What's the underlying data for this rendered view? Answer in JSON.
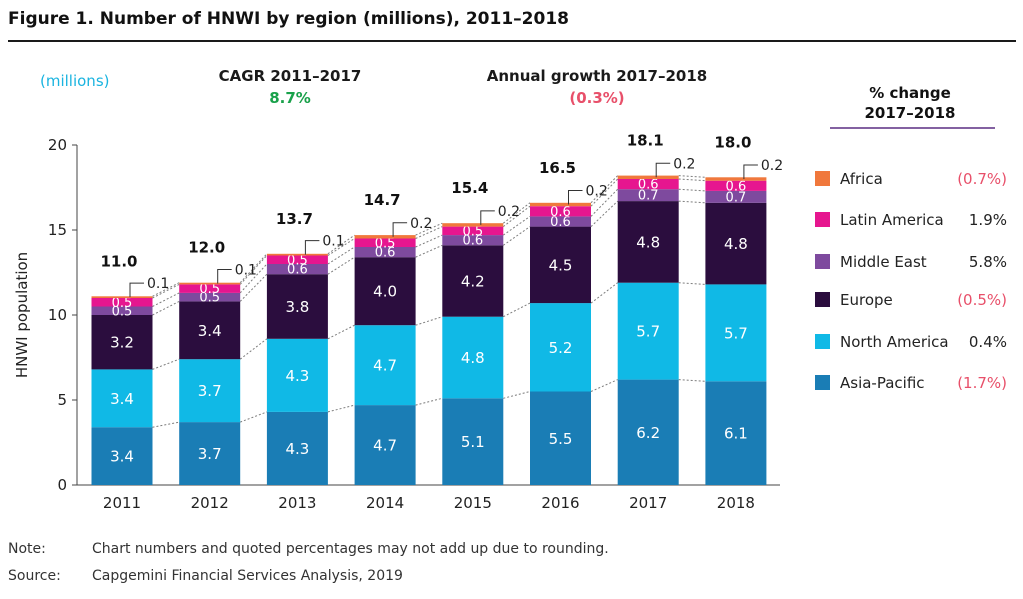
{
  "title": "Figure 1. Number of HNWI by region (millions), 2011–2018",
  "note_label": "Note:",
  "note_text": "Chart numbers and quoted percentages may not add up due to rounding.",
  "source_label": "Source:",
  "source_text": "Capgemini Financial Services Analysis, 2019",
  "chart_data": {
    "type": "bar",
    "stacked": true,
    "categories": [
      "2011",
      "2012",
      "2013",
      "2014",
      "2015",
      "2016",
      "2017",
      "2018"
    ],
    "ylabel": "HNWI population",
    "units_label": "(millions)",
    "ylim": [
      0,
      20
    ],
    "yticks": [
      0,
      5,
      10,
      15,
      20
    ],
    "totals": [
      "11.0",
      "12.0",
      "13.7",
      "14.7",
      "15.4",
      "16.5",
      "18.1",
      "18.0"
    ],
    "series": [
      {
        "name": "Asia-Pacific",
        "color": "#1a7db5",
        "change": "(1.7%)",
        "change_negative": true,
        "values": [
          3.4,
          3.7,
          4.3,
          4.7,
          5.1,
          5.5,
          6.2,
          6.1
        ]
      },
      {
        "name": "North America",
        "color": "#10b9e6",
        "change": "0.4%",
        "change_negative": false,
        "values": [
          3.4,
          3.7,
          4.3,
          4.7,
          4.8,
          5.2,
          5.7,
          5.7
        ]
      },
      {
        "name": "Europe",
        "color": "#2b0d3e",
        "change": "(0.5%)",
        "change_negative": true,
        "values": [
          3.2,
          3.4,
          3.8,
          4.0,
          4.2,
          4.5,
          4.8,
          4.8
        ]
      },
      {
        "name": "Middle East",
        "color": "#7e4a9e",
        "change": "5.8%",
        "change_negative": false,
        "values": [
          0.5,
          0.5,
          0.6,
          0.6,
          0.6,
          0.6,
          0.7,
          0.7
        ]
      },
      {
        "name": "Latin America",
        "color": "#e6168f",
        "change": "1.9%",
        "change_negative": false,
        "values": [
          0.5,
          0.5,
          0.5,
          0.5,
          0.5,
          0.6,
          0.6,
          0.6
        ]
      },
      {
        "name": "Africa",
        "color": "#f0783c",
        "change": "(0.7%)",
        "change_negative": true,
        "values": [
          0.1,
          0.1,
          0.1,
          0.2,
          0.2,
          0.2,
          0.2,
          0.2
        ]
      }
    ],
    "cagr_label": "CAGR 2011–2017",
    "cagr_value": "8.7%",
    "growth_label": "Annual growth 2017–2018",
    "growth_value": "(0.3%)",
    "legend_title_line1": "% change",
    "legend_title_line2": "2017–2018",
    "colors": {
      "positive": "#19a14a",
      "negative": "#e8506a",
      "units": "#1ab4e0"
    }
  }
}
